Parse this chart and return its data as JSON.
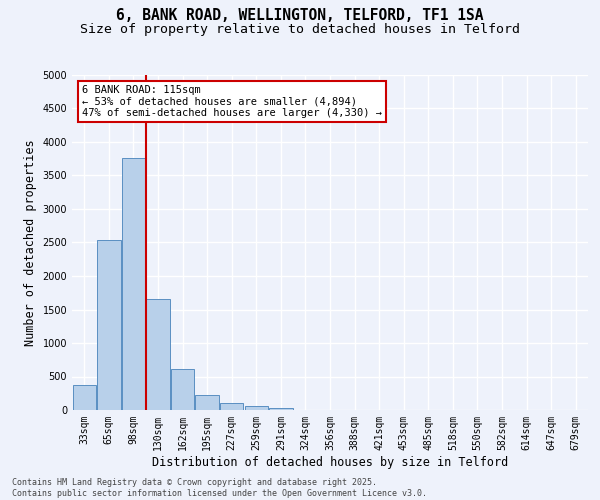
{
  "title_line1": "6, BANK ROAD, WELLINGTON, TELFORD, TF1 1SA",
  "title_line2": "Size of property relative to detached houses in Telford",
  "xlabel": "Distribution of detached houses by size in Telford",
  "ylabel": "Number of detached properties",
  "categories": [
    "33sqm",
    "65sqm",
    "98sqm",
    "130sqm",
    "162sqm",
    "195sqm",
    "227sqm",
    "259sqm",
    "291sqm",
    "324sqm",
    "356sqm",
    "388sqm",
    "421sqm",
    "453sqm",
    "485sqm",
    "518sqm",
    "550sqm",
    "582sqm",
    "614sqm",
    "647sqm",
    "679sqm"
  ],
  "values": [
    380,
    2530,
    3760,
    1650,
    610,
    230,
    100,
    55,
    30,
    0,
    0,
    0,
    0,
    0,
    0,
    0,
    0,
    0,
    0,
    0,
    0
  ],
  "bar_color": "#b8d0ea",
  "bar_edge_color": "#5a8fc2",
  "vline_color": "#cc0000",
  "annotation_text": "6 BANK ROAD: 115sqm\n← 53% of detached houses are smaller (4,894)\n47% of semi-detached houses are larger (4,330) →",
  "annotation_box_color": "#ffffff",
  "annotation_box_edge_color": "#cc0000",
  "ylim": [
    0,
    5000
  ],
  "yticks": [
    0,
    500,
    1000,
    1500,
    2000,
    2500,
    3000,
    3500,
    4000,
    4500,
    5000
  ],
  "footer_line1": "Contains HM Land Registry data © Crown copyright and database right 2025.",
  "footer_line2": "Contains public sector information licensed under the Open Government Licence v3.0.",
  "background_color": "#eef2fb",
  "grid_color": "#ffffff",
  "title_fontsize": 10.5,
  "subtitle_fontsize": 9.5,
  "tick_fontsize": 7,
  "ylabel_fontsize": 8.5,
  "xlabel_fontsize": 8.5,
  "footer_fontsize": 6,
  "annotation_fontsize": 7.5
}
